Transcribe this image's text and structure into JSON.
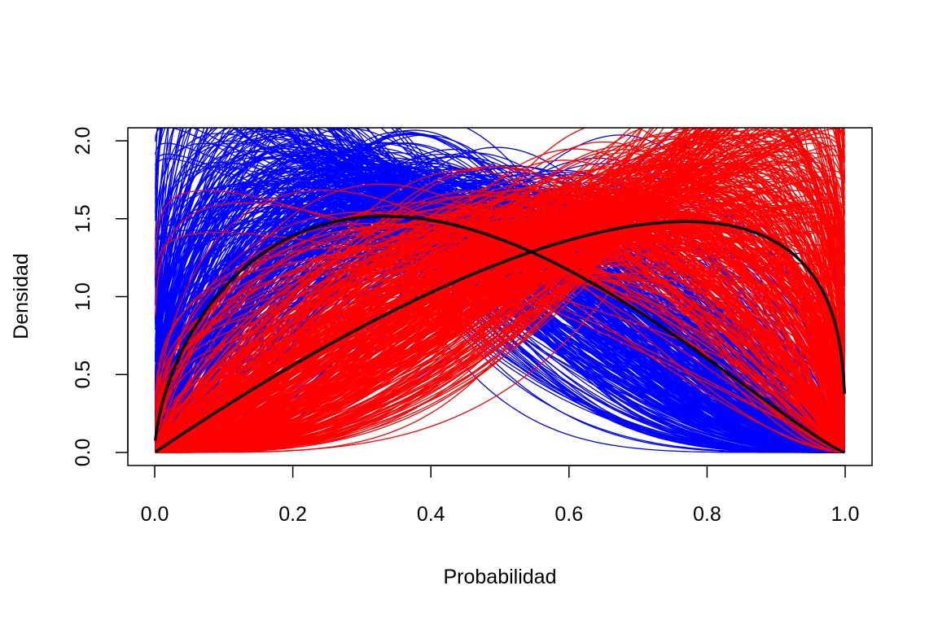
{
  "chart_data": {
    "type": "line",
    "title": "",
    "xlabel": "Probabilidad",
    "ylabel": "Densidad",
    "xlim": [
      0,
      1
    ],
    "ylim": [
      0,
      2
    ],
    "x_ticks": [
      "0.0",
      "0.2",
      "0.4",
      "0.6",
      "0.8",
      "1.0"
    ],
    "y_ticks": [
      "0.0",
      "0.5",
      "1.0",
      "1.5",
      "2.0"
    ],
    "grid": false,
    "legend": "none",
    "series": [
      {
        "group": "blue",
        "color": "#0000ff",
        "count": 1000,
        "distribution": "beta density",
        "center_params": [
          1.8,
          2.6
        ],
        "note": "many posterior-sample curves"
      },
      {
        "group": "red",
        "color": "#ff0000",
        "count": 1000,
        "distribution": "beta density",
        "center_params": [
          2.4,
          1.5
        ],
        "note": "many posterior-sample curves"
      },
      {
        "group": "black-left",
        "color": "#000000",
        "distribution": "beta density",
        "params": [
          1.6,
          2.2
        ],
        "peak": {
          "x": 0.33,
          "y": 1.45
        }
      },
      {
        "group": "black-right",
        "color": "#000000",
        "distribution": "beta density",
        "params": [
          2.0,
          1.3
        ],
        "peak": {
          "x": 0.77,
          "y": 1.55
        }
      }
    ]
  }
}
